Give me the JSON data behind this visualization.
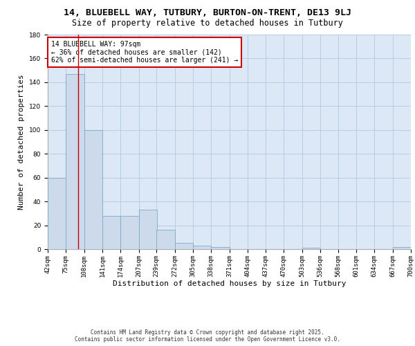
{
  "title_line1": "14, BLUEBELL WAY, TUTBURY, BURTON-ON-TRENT, DE13 9LJ",
  "title_line2": "Size of property relative to detached houses in Tutbury",
  "xlabel": "Distribution of detached houses by size in Tutbury",
  "ylabel": "Number of detached properties",
  "bins": [
    42,
    75,
    108,
    141,
    174,
    207,
    239,
    272,
    305,
    338,
    371,
    404,
    437,
    470,
    503,
    536,
    568,
    601,
    634,
    667,
    700
  ],
  "bin_labels": [
    "42sqm",
    "75sqm",
    "108sqm",
    "141sqm",
    "174sqm",
    "207sqm",
    "239sqm",
    "272sqm",
    "305sqm",
    "338sqm",
    "371sqm",
    "404sqm",
    "437sqm",
    "470sqm",
    "503sqm",
    "536sqm",
    "568sqm",
    "601sqm",
    "634sqm",
    "667sqm",
    "700sqm"
  ],
  "bar_heights": [
    60,
    147,
    100,
    28,
    28,
    33,
    16,
    5,
    3,
    2,
    0,
    0,
    0,
    0,
    1,
    0,
    0,
    0,
    0,
    2
  ],
  "bar_color": "#ccdaeb",
  "bar_edgecolor": "#7aaac8",
  "grid_color": "#b8cce0",
  "bg_color": "#dce8f5",
  "property_line_x": 97,
  "property_line_color": "#cc0000",
  "annotation_text": "14 BLUEBELL WAY: 97sqm\n← 36% of detached houses are smaller (142)\n62% of semi-detached houses are larger (241) →",
  "annotation_box_color": "#cc0000",
  "ylim": [
    0,
    180
  ],
  "yticks": [
    0,
    20,
    40,
    60,
    80,
    100,
    120,
    140,
    160,
    180
  ],
  "footer_line1": "Contains HM Land Registry data © Crown copyright and database right 2025.",
  "footer_line2": "Contains public sector information licensed under the Open Government Licence v3.0.",
  "title_fontsize": 9.5,
  "subtitle_fontsize": 8.5,
  "ylabel_fontsize": 8,
  "xlabel_fontsize": 8,
  "tick_fontsize": 6.5,
  "annotation_fontsize": 7,
  "footer_fontsize": 5.5
}
